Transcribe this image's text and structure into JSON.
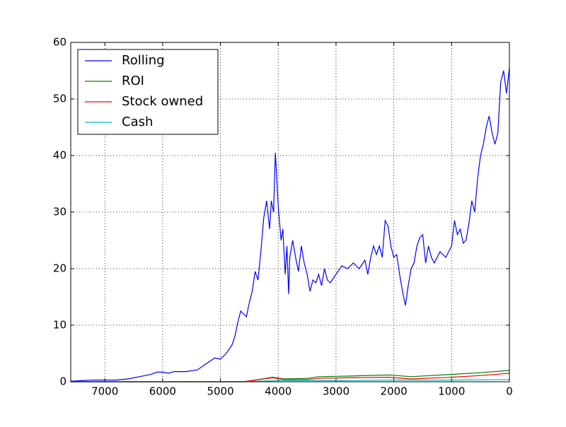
{
  "chart_data": {
    "type": "line",
    "xlim": [
      7590,
      0
    ],
    "ylim": [
      0,
      60
    ],
    "xticks": [
      7000,
      6000,
      5000,
      4000,
      3000,
      2000,
      1000,
      0
    ],
    "yticks": [
      0,
      10,
      20,
      30,
      40,
      50,
      60
    ],
    "grid": true,
    "legend": "upper left",
    "series": [
      {
        "name": "Rolling",
        "color": "#0000ff",
        "x": [
          7590,
          7400,
          7200,
          7000,
          6800,
          6600,
          6400,
          6200,
          6100,
          6000,
          5900,
          5800,
          5600,
          5400,
          5300,
          5200,
          5100,
          5000,
          4900,
          4800,
          4750,
          4700,
          4650,
          4600,
          4550,
          4500,
          4450,
          4400,
          4350,
          4300,
          4250,
          4200,
          4150,
          4120,
          4080,
          4050,
          4000,
          3950,
          3920,
          3880,
          3850,
          3820,
          3800,
          3750,
          3700,
          3650,
          3600,
          3550,
          3500,
          3450,
          3400,
          3350,
          3300,
          3250,
          3200,
          3150,
          3100,
          3000,
          2900,
          2800,
          2700,
          2600,
          2500,
          2450,
          2400,
          2350,
          2300,
          2250,
          2200,
          2150,
          2100,
          2050,
          2000,
          1950,
          1900,
          1850,
          1800,
          1750,
          1700,
          1650,
          1600,
          1550,
          1500,
          1450,
          1400,
          1350,
          1300,
          1200,
          1100,
          1000,
          950,
          900,
          850,
          800,
          750,
          700,
          650,
          600,
          550,
          500,
          450,
          400,
          350,
          300,
          250,
          200,
          150,
          100,
          50,
          0
        ],
        "values": [
          0.1,
          0.2,
          0.3,
          0.3,
          0.3,
          0.5,
          0.9,
          1.3,
          1.7,
          1.7,
          1.5,
          1.8,
          1.8,
          2.1,
          2.8,
          3.5,
          4.2,
          4.0,
          5.0,
          6.5,
          8,
          10.5,
          12.5,
          12,
          11.5,
          14,
          16,
          19.5,
          18,
          23,
          29,
          32,
          27,
          32,
          30,
          40.5,
          31,
          25,
          27,
          19,
          24,
          15.5,
          22,
          25,
          22,
          19.5,
          24,
          21,
          19,
          16,
          18,
          17.5,
          19,
          17,
          20,
          18,
          17.5,
          19,
          20.5,
          20,
          21,
          20,
          21.5,
          19,
          22,
          24,
          22.5,
          24,
          22,
          28.5,
          27.5,
          24,
          22,
          22.5,
          19,
          16,
          13.5,
          17,
          20,
          21,
          24,
          25.5,
          26,
          21,
          24,
          22,
          21,
          23,
          22,
          24,
          28.5,
          26,
          27,
          24.5,
          25,
          28,
          32,
          30,
          36,
          40,
          42,
          45,
          47,
          44,
          42,
          44,
          53,
          55,
          51,
          55.5
        ]
      },
      {
        "name": "ROI",
        "color": "#008000",
        "x": [
          7590,
          4600,
          4400,
          4100,
          3900,
          3500,
          3300,
          2800,
          2100,
          1700,
          1000,
          500,
          0
        ],
        "values": [
          0,
          0,
          0.3,
          0.8,
          0.5,
          0.6,
          0.9,
          1.0,
          1.2,
          0.9,
          1.3,
          1.6,
          2.0
        ]
      },
      {
        "name": "Stock owned",
        "color": "#ff0000",
        "x": [
          7590,
          4600,
          4400,
          4100,
          3900,
          3500,
          3300,
          2800,
          2100,
          1700,
          1000,
          500,
          0
        ],
        "values": [
          0,
          0,
          0.3,
          0.7,
          0.4,
          0.4,
          0.6,
          0.7,
          0.8,
          0.5,
          0.8,
          1.1,
          1.5
        ]
      },
      {
        "name": "Cash",
        "color": "#00bfbf",
        "x": [
          7590,
          4600,
          4000,
          3000,
          2000,
          1000,
          0
        ],
        "values": [
          0,
          0,
          0.2,
          0.2,
          0.3,
          0.3,
          0.4
        ]
      }
    ]
  }
}
